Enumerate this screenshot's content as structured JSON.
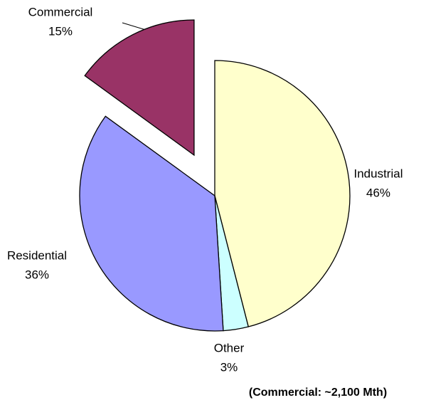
{
  "chart_data": {
    "type": "pie",
    "categories": [
      "Industrial",
      "Other",
      "Residential",
      "Commercial"
    ],
    "values": [
      46,
      3,
      36,
      15
    ],
    "value_labels": [
      "46%",
      "3%",
      "36%",
      "15%"
    ],
    "colors": [
      "#ffffcc",
      "#ccffff",
      "#9999ff",
      "#993366"
    ],
    "exploded": [
      "Commercial"
    ],
    "annotation": "(Commercial: ~2,100 Mth)"
  }
}
